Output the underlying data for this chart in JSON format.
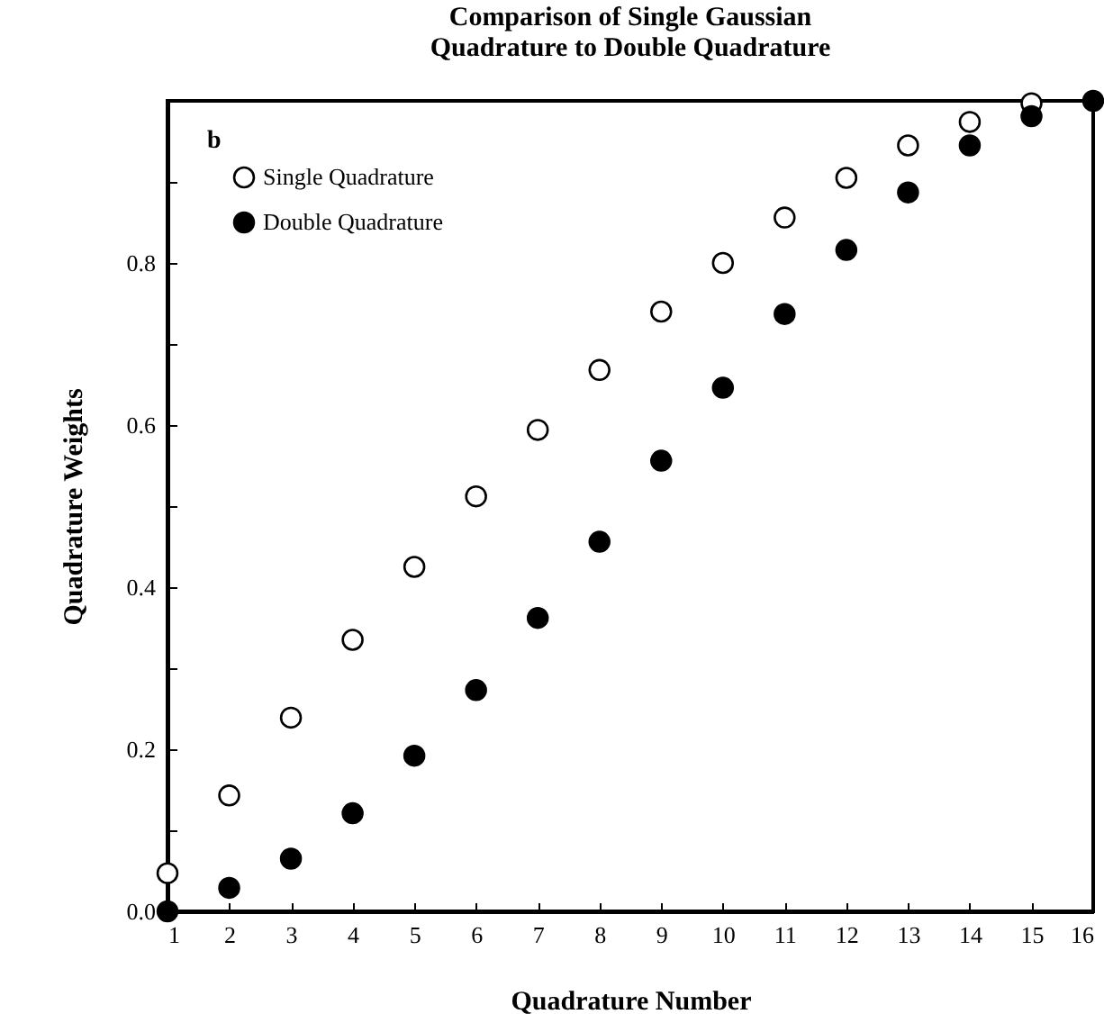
{
  "chart_data": {
    "type": "scatter",
    "title": "Comparison of Single Gaussian\nQuadrature to Double Quadrature",
    "xlabel": "Quadrature Number",
    "ylabel": "Quadrature Weights",
    "annotations": [
      "b"
    ],
    "x": [
      1,
      2,
      3,
      4,
      5,
      6,
      7,
      8,
      9,
      10,
      11,
      12,
      13,
      14,
      15,
      16
    ],
    "series": [
      {
        "name": "Single Quadrature",
        "color": "#000000",
        "values": [
          0.047,
          0.143,
          0.239,
          0.335,
          0.425,
          0.512,
          0.594,
          0.668,
          0.74,
          0.8,
          0.856,
          0.905,
          0.945,
          0.974,
          0.997,
          null
        ]
      },
      {
        "name": "Double Quadrature",
        "color": "#000000",
        "values": [
          0.0,
          0.029,
          0.065,
          0.121,
          0.192,
          0.273,
          0.362,
          0.456,
          0.556,
          0.646,
          0.737,
          0.816,
          0.887,
          0.945,
          0.981,
          1.0
        ]
      }
    ],
    "xlim": [
      1,
      16
    ],
    "xticks": [
      1,
      2,
      3,
      4,
      5,
      6,
      7,
      8,
      9,
      10,
      11,
      12,
      13,
      14,
      15,
      16
    ],
    "ylim": [
      0,
      1
    ],
    "yticks": [
      {
        "value": 0,
        "label": "0.0"
      },
      {
        "value": 0.1,
        "label": null
      },
      0.2,
      {
        "value": 0.3,
        "label": null
      },
      0.4,
      {
        "value": 0.5,
        "label": null
      },
      0.6,
      {
        "value": 0.7,
        "label": null
      },
      0.8,
      {
        "value": 0.9,
        "label": null
      },
      {
        "value": 1,
        "label": null
      }
    ],
    "grid": false,
    "legend": "top left",
    "marker": "circle"
  }
}
